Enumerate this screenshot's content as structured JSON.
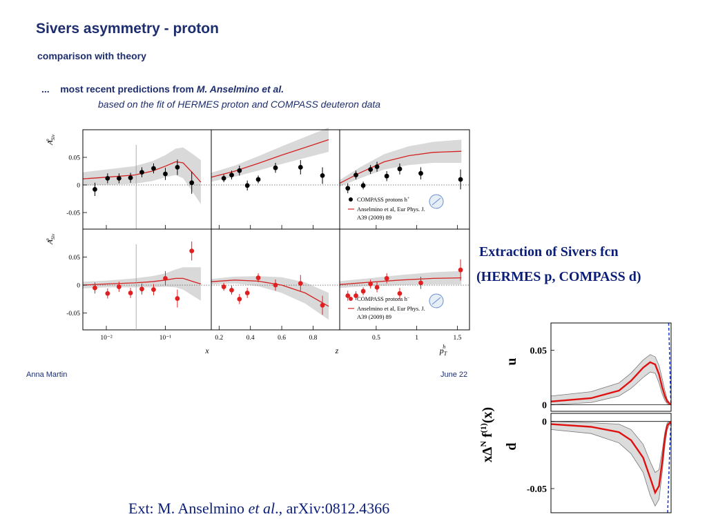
{
  "slide": {
    "title": "Sivers asymmetry - proton",
    "subtitle": "comparison with theory",
    "intro_prefix": "...    most recent predictions from ",
    "intro_author": "M. Anselmino et al.",
    "intro_line2": "based on the fit of HERMES proton and COMPASS deuteron data",
    "author": "Anna Martin",
    "date": "June 22",
    "extraction_line1": "Extraction of Sivers  fcn",
    "extraction_line2": "(HERMES p, COMPASS d)",
    "ref_prefix": "Ext: M. Anselmino ",
    "ref_italic": "et al",
    "ref_suffix": "., arXiv:0812.4366"
  },
  "colors": {
    "text_blue": "#1d2d6e",
    "theory_red": "#d42020",
    "band_gray": "#d9d9d9",
    "black_points": "#000000",
    "red_points": "#e02020",
    "dashed_blue": "#1a3fd6"
  },
  "chart_data": [
    {
      "type": "scatter",
      "id": "sivers_proton",
      "ylabel": "A_Siv^p",
      "ylim": [
        -0.08,
        0.1
      ],
      "yticks": [
        0.05,
        0,
        -0.05
      ],
      "ytick_labels": [
        "0.05",
        "0",
        "-0.05"
      ],
      "panels": {
        "x": {
          "xlabel": "x",
          "scale": "log",
          "xlim": [
            0.004,
            0.6
          ],
          "xtick_values": [
            0.01,
            0.1
          ],
          "xtick_labels": [
            "10⁻²",
            "10⁻¹"
          ]
        },
        "z": {
          "xlabel": "z",
          "scale": "linear",
          "xlim": [
            0.15,
            0.97
          ],
          "xtick_values": [
            0.2,
            0.4,
            0.6,
            0.8
          ],
          "xtick_labels": [
            "0.2",
            "0.4",
            "0.6",
            "0.8"
          ]
        },
        "pt": {
          "xlabel": "p_T^h",
          "scale": "linear",
          "xlim": [
            0.05,
            1.65
          ],
          "xtick_values": [
            0.5,
            1,
            1.5
          ],
          "xtick_labels": [
            "0.5",
            "1",
            "1.5"
          ]
        }
      },
      "rows": [
        {
          "name": "COMPASS protons h+",
          "label": "COMPASS protons h",
          "sup": "+",
          "legend_note": "Anselmino et al, Eur Phys. J. A39 (2009) 89",
          "theory_name": "Anselmino et al, Eur Phys. J.",
          "theory_name2": "A39 (2009) 89",
          "x": [
            [
              0.0064,
              -0.008,
              0.012
            ],
            [
              0.0105,
              0.012,
              0.009
            ],
            [
              0.0164,
              0.012,
              0.009
            ],
            [
              0.0257,
              0.013,
              0.009
            ],
            [
              0.04,
              0.023,
              0.009
            ],
            [
              0.0632,
              0.03,
              0.009
            ],
            [
              0.1,
              0.02,
              0.011
            ],
            [
              0.16,
              0.032,
              0.014
            ],
            [
              0.28,
              0.004,
              0.02
            ]
          ],
          "z": [
            [
              0.23,
              0.012,
              0.007
            ],
            [
              0.28,
              0.018,
              0.008
            ],
            [
              0.33,
              0.026,
              0.009
            ],
            [
              0.38,
              -0.001,
              0.009
            ],
            [
              0.45,
              0.01,
              0.007
            ],
            [
              0.56,
              0.031,
              0.009
            ],
            [
              0.72,
              0.032,
              0.013
            ],
            [
              0.86,
              0.017,
              0.015
            ]
          ],
          "pt": [
            [
              0.15,
              -0.006,
              0.009
            ],
            [
              0.25,
              0.018,
              0.008
            ],
            [
              0.34,
              -0.001,
              0.007
            ],
            [
              0.43,
              0.028,
              0.008
            ],
            [
              0.51,
              0.033,
              0.009
            ],
            [
              0.63,
              0.016,
              0.009
            ],
            [
              0.79,
              0.029,
              0.01
            ],
            [
              1.05,
              0.021,
              0.011
            ],
            [
              1.54,
              0.01,
              0.018
            ]
          ],
          "theory_x": [
            [
              0.004,
              0.011,
              0.012
            ],
            [
              0.01,
              0.014,
              0.014
            ],
            [
              0.03,
              0.018,
              0.016
            ],
            [
              0.06,
              0.025,
              0.018
            ],
            [
              0.1,
              0.034,
              0.02
            ],
            [
              0.15,
              0.042,
              0.024
            ],
            [
              0.2,
              0.04,
              0.028
            ],
            [
              0.3,
              0.02,
              0.035
            ],
            [
              0.4,
              0.005,
              0.04
            ]
          ],
          "theory_z": [
            [
              0.15,
              0.014,
              0.008
            ],
            [
              0.3,
              0.025,
              0.01
            ],
            [
              0.45,
              0.039,
              0.013
            ],
            [
              0.6,
              0.054,
              0.016
            ],
            [
              0.75,
              0.068,
              0.019
            ],
            [
              0.9,
              0.082,
              0.022
            ]
          ],
          "theory_pt": [
            [
              0.05,
              0.003,
              0.006
            ],
            [
              0.3,
              0.022,
              0.01
            ],
            [
              0.6,
              0.042,
              0.014
            ],
            [
              0.9,
              0.053,
              0.017
            ],
            [
              1.2,
              0.059,
              0.019
            ],
            [
              1.55,
              0.061,
              0.021
            ]
          ]
        },
        {
          "name": "COMPASS protons h-",
          "label": "COMPASS protons h",
          "sup": "−",
          "legend_note": "Anselmino et al, Eur Phys. J. A39 (2009) 89",
          "theory_name": "Anselmino et al, Eur Phys. J.",
          "theory_name2": "A39 (2009) 89",
          "x": [
            [
              0.0064,
              -0.005,
              0.01
            ],
            [
              0.0105,
              -0.015,
              0.009
            ],
            [
              0.0164,
              -0.003,
              0.009
            ],
            [
              0.0257,
              -0.014,
              0.009
            ],
            [
              0.04,
              -0.007,
              0.01
            ],
            [
              0.0632,
              -0.008,
              0.01
            ],
            [
              0.1,
              0.012,
              0.013
            ],
            [
              0.16,
              -0.024,
              0.016
            ],
            [
              0.28,
              0.061,
              0.017
            ]
          ],
          "z": [
            [
              0.23,
              -0.003,
              0.007
            ],
            [
              0.28,
              -0.009,
              0.008
            ],
            [
              0.33,
              -0.025,
              0.009
            ],
            [
              0.38,
              -0.014,
              0.009
            ],
            [
              0.45,
              0.013,
              0.008
            ],
            [
              0.56,
              0.0,
              0.01
            ],
            [
              0.72,
              0.003,
              0.015
            ],
            [
              0.86,
              -0.036,
              0.017
            ]
          ],
          "pt": [
            [
              0.15,
              -0.019,
              0.009
            ],
            [
              0.25,
              -0.019,
              0.008
            ],
            [
              0.34,
              -0.011,
              0.007
            ],
            [
              0.43,
              0.002,
              0.008
            ],
            [
              0.51,
              -0.004,
              0.009
            ],
            [
              0.63,
              0.012,
              0.009
            ],
            [
              0.79,
              -0.015,
              0.01
            ],
            [
              1.05,
              0.004,
              0.011
            ],
            [
              1.54,
              0.027,
              0.019
            ]
          ],
          "theory_x": [
            [
              0.004,
              0.0,
              0.006
            ],
            [
              0.01,
              0.002,
              0.006
            ],
            [
              0.03,
              0.004,
              0.008
            ],
            [
              0.06,
              0.006,
              0.01
            ],
            [
              0.1,
              0.009,
              0.012
            ],
            [
              0.15,
              0.012,
              0.016
            ],
            [
              0.2,
              0.012,
              0.02
            ],
            [
              0.3,
              0.006,
              0.026
            ],
            [
              0.4,
              0.002,
              0.03
            ]
          ],
          "theory_z": [
            [
              0.15,
              0.006,
              0.005
            ],
            [
              0.3,
              0.009,
              0.006
            ],
            [
              0.45,
              0.007,
              0.009
            ],
            [
              0.6,
              0.0,
              0.014
            ],
            [
              0.75,
              -0.014,
              0.019
            ],
            [
              0.9,
              -0.038,
              0.024
            ]
          ],
          "theory_pt": [
            [
              0.05,
              0.001,
              0.006
            ],
            [
              0.4,
              0.005,
              0.007
            ],
            [
              0.8,
              0.009,
              0.009
            ],
            [
              1.2,
              0.012,
              0.011
            ],
            [
              1.55,
              0.013,
              0.012
            ]
          ]
        }
      ]
    },
    {
      "type": "line",
      "id": "sivers_function",
      "ylabel": "xΔN f(1)(x)",
      "ylabel_base": "x",
      "ylabel_delta": "Δ",
      "ylabel_N": "N",
      "ylabel_f": " f",
      "ylabel_sup": "(1)",
      "ylabel_tail": "(x)",
      "panels": [
        {
          "name": "u",
          "ylim": [
            -0.006,
            0.075
          ],
          "yticks": [
            0.05,
            0
          ],
          "ytick_labels": [
            "0.05",
            "0"
          ],
          "x": [
            0.001,
            0.01,
            0.05,
            0.1,
            0.2,
            0.3,
            0.4,
            0.5,
            0.6,
            0.7,
            0.8,
            1.0
          ],
          "central": [
            0.003,
            0.006,
            0.013,
            0.022,
            0.034,
            0.039,
            0.037,
            0.028,
            0.016,
            0.008,
            0.003,
            0.0
          ],
          "band_lo": [
            0.0,
            0.002,
            0.008,
            0.015,
            0.025,
            0.03,
            0.029,
            0.02,
            0.01,
            0.004,
            0.001,
            0.0
          ],
          "band_hi": [
            0.008,
            0.012,
            0.02,
            0.029,
            0.041,
            0.046,
            0.044,
            0.036,
            0.024,
            0.013,
            0.005,
            0.0
          ],
          "positivity_x": [
            0.87,
            0.92,
            0.97,
            1.0
          ],
          "positivity_y": [
            0.075,
            0.045,
            0.01,
            0.0
          ]
        },
        {
          "name": "d",
          "ylim": [
            -0.068,
            0.006
          ],
          "yticks": [
            0,
            -0.05
          ],
          "ytick_labels": [
            "0",
            "-0.05"
          ],
          "x": [
            0.001,
            0.01,
            0.05,
            0.1,
            0.2,
            0.3,
            0.4,
            0.5,
            0.6,
            0.7,
            0.8,
            1.0
          ],
          "central": [
            -0.002,
            -0.004,
            -0.008,
            -0.014,
            -0.027,
            -0.042,
            -0.053,
            -0.048,
            -0.03,
            -0.012,
            -0.003,
            0.0
          ],
          "band_lo": [
            -0.006,
            -0.009,
            -0.016,
            -0.024,
            -0.038,
            -0.055,
            -0.063,
            -0.058,
            -0.038,
            -0.018,
            -0.006,
            0.0
          ],
          "band_hi": [
            0.0,
            -0.001,
            -0.002,
            -0.006,
            -0.017,
            -0.03,
            -0.038,
            -0.036,
            -0.022,
            -0.008,
            -0.001,
            0.0
          ],
          "positivity_x": [
            0.82,
            0.88,
            0.95,
            1.0
          ],
          "positivity_y": [
            -0.068,
            -0.04,
            -0.012,
            0.0
          ]
        }
      ]
    }
  ]
}
